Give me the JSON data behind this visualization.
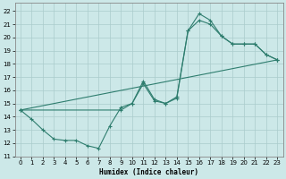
{
  "xlabel": "Humidex (Indice chaleur)",
  "background_color": "#cce8e8",
  "grid_color": "#aacccc",
  "line_color": "#2e7d6e",
  "xlim": [
    -0.5,
    23.5
  ],
  "ylim": [
    11,
    22.6
  ],
  "xticks": [
    0,
    1,
    2,
    3,
    4,
    5,
    6,
    7,
    8,
    9,
    10,
    11,
    12,
    13,
    14,
    15,
    16,
    17,
    18,
    19,
    20,
    21,
    22,
    23
  ],
  "yticks": [
    11,
    12,
    13,
    14,
    15,
    16,
    17,
    18,
    19,
    20,
    21,
    22
  ],
  "line1_x": [
    0,
    1,
    2,
    3,
    4,
    5,
    6,
    7,
    8,
    9,
    10,
    11,
    12,
    13,
    14,
    15,
    16,
    17,
    18,
    19,
    20,
    21,
    22,
    23
  ],
  "line1_y": [
    14.5,
    13.8,
    13.0,
    12.3,
    12.2,
    12.2,
    11.8,
    11.6,
    13.3,
    14.7,
    15.0,
    16.7,
    15.3,
    15.0,
    15.5,
    20.5,
    21.8,
    21.3,
    20.1,
    19.5,
    19.5,
    19.5,
    18.7,
    18.3
  ],
  "line2_x": [
    0,
    23
  ],
  "line2_y": [
    14.5,
    18.3
  ],
  "line3_x": [
    0,
    9,
    10,
    11,
    12,
    13,
    14,
    15,
    16,
    17,
    18,
    19,
    20,
    21,
    22,
    23
  ],
  "line3_y": [
    14.5,
    14.5,
    15.0,
    16.5,
    15.2,
    15.0,
    15.4,
    20.5,
    21.3,
    21.0,
    20.1,
    19.5,
    19.5,
    19.5,
    18.7,
    18.3
  ]
}
